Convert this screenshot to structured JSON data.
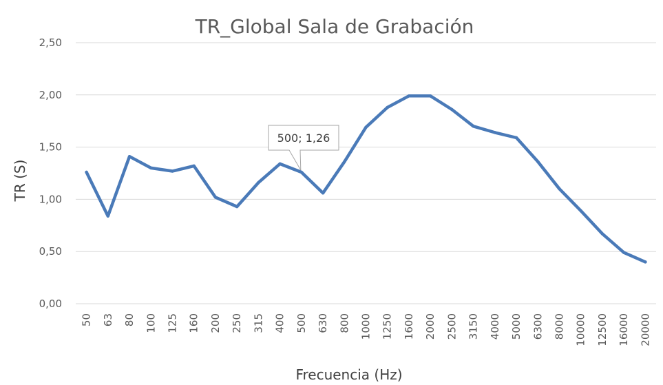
{
  "chart_data": {
    "type": "line",
    "title": "TR_Global Sala de Grabación",
    "xlabel": "Frecuencia (Hz)",
    "ylabel": "TR (S)",
    "ylim": [
      0,
      2.5
    ],
    "yticks": [
      "0,00",
      "0,50",
      "1,00",
      "1,50",
      "2,00",
      "2,50"
    ],
    "ytick_values": [
      0,
      0.5,
      1.0,
      1.5,
      2.0,
      2.5
    ],
    "grid": true,
    "legend": "none",
    "categories": [
      "50",
      "63",
      "80",
      "100",
      "125",
      "160",
      "200",
      "250",
      "315",
      "400",
      "500",
      "630",
      "800",
      "1000",
      "1250",
      "1600",
      "2000",
      "2500",
      "3150",
      "4000",
      "5000",
      "6300",
      "8000",
      "10000",
      "12500",
      "16000",
      "20000"
    ],
    "series": [
      {
        "color": "#4a7ab8",
        "values": [
          1.26,
          0.84,
          1.41,
          1.3,
          1.27,
          1.32,
          1.02,
          0.93,
          1.16,
          1.34,
          1.26,
          1.06,
          1.36,
          1.69,
          1.88,
          1.99,
          1.99,
          1.86,
          1.7,
          1.64,
          1.59,
          1.36,
          1.1,
          0.89,
          0.67,
          0.49,
          0.4
        ]
      }
    ],
    "annotation": {
      "label": "500; 1,26",
      "category": "500",
      "value": 1.26
    }
  }
}
